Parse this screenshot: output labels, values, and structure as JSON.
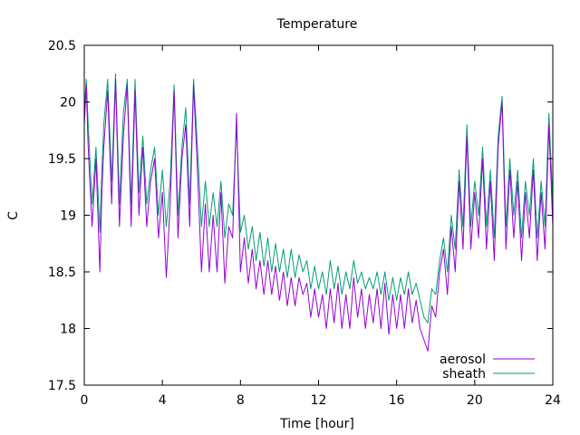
{
  "chart_data": {
    "type": "line",
    "title": "Temperature",
    "xlabel": "Time [hour]",
    "ylabel": "C",
    "xlim": [
      0,
      24
    ],
    "ylim": [
      17.5,
      20.5
    ],
    "x_ticks": [
      0,
      4,
      8,
      12,
      16,
      20,
      24
    ],
    "y_ticks": [
      17.5,
      18,
      18.5,
      19,
      19.5,
      20,
      20.5
    ],
    "x_tick_labels": [
      "0",
      "4",
      "8",
      "12",
      "16",
      "20",
      "24"
    ],
    "y_tick_labels": [
      "17.5",
      "18",
      "18.5",
      "19",
      "19.5",
      "20",
      "20.5"
    ],
    "grid": false,
    "legend_position": "bottom-right",
    "series": [
      {
        "name": "aerosol",
        "color": "#9400d3",
        "x": [
          0,
          0.1,
          0.2,
          0.4,
          0.6,
          0.8,
          0.9,
          1.0,
          1.2,
          1.4,
          1.6,
          1.8,
          2.0,
          2.2,
          2.4,
          2.6,
          2.8,
          3.0,
          3.2,
          3.4,
          3.6,
          3.8,
          4.0,
          4.2,
          4.4,
          4.6,
          4.8,
          5.0,
          5.2,
          5.4,
          5.6,
          5.8,
          6.0,
          6.2,
          6.4,
          6.6,
          6.8,
          7.0,
          7.2,
          7.4,
          7.6,
          7.8,
          8.0,
          8.2,
          8.4,
          8.6,
          8.8,
          9.0,
          9.2,
          9.4,
          9.6,
          9.8,
          10.0,
          10.2,
          10.4,
          10.6,
          10.8,
          11.0,
          11.2,
          11.4,
          11.6,
          11.8,
          12.0,
          12.2,
          12.4,
          12.6,
          12.8,
          13.0,
          13.2,
          13.4,
          13.6,
          13.8,
          14.0,
          14.2,
          14.4,
          14.6,
          14.8,
          15.0,
          15.2,
          15.4,
          15.6,
          15.8,
          16.0,
          16.2,
          16.4,
          16.6,
          16.8,
          17.0,
          17.2,
          17.4,
          17.6,
          17.8,
          18.0,
          18.2,
          18.4,
          18.6,
          18.8,
          19.0,
          19.2,
          19.4,
          19.6,
          19.8,
          20.0,
          20.2,
          20.4,
          20.6,
          20.8,
          21.0,
          21.2,
          21.4,
          21.6,
          21.8,
          22.0,
          22.2,
          22.4,
          22.6,
          22.8,
          23.0,
          23.2,
          23.4,
          23.6,
          23.8,
          24.0
        ],
        "y": [
          19.8,
          20.15,
          19.6,
          18.9,
          19.5,
          18.5,
          19.2,
          19.6,
          20.1,
          19.1,
          20.2,
          18.9,
          19.7,
          20.15,
          18.9,
          20.1,
          19.0,
          19.6,
          18.9,
          19.3,
          19.5,
          18.8,
          19.2,
          18.45,
          19.1,
          20.1,
          18.8,
          19.5,
          19.8,
          18.9,
          20.15,
          19.4,
          18.5,
          19.1,
          18.5,
          19.0,
          18.5,
          19.2,
          18.4,
          18.9,
          18.8,
          19.9,
          18.5,
          18.8,
          18.4,
          18.7,
          18.35,
          18.6,
          18.3,
          18.6,
          18.3,
          18.55,
          18.25,
          18.5,
          18.2,
          18.45,
          18.2,
          18.45,
          18.3,
          18.4,
          18.1,
          18.35,
          18.1,
          18.3,
          18.0,
          18.35,
          18.05,
          18.4,
          18.0,
          18.3,
          18.0,
          18.45,
          18.1,
          18.35,
          18.0,
          18.3,
          18.05,
          18.35,
          18.0,
          18.4,
          17.95,
          18.3,
          18.0,
          18.3,
          18.0,
          18.35,
          18.05,
          18.25,
          18.0,
          17.9,
          17.8,
          18.2,
          18.1,
          18.5,
          18.7,
          18.3,
          18.9,
          18.5,
          19.3,
          18.7,
          19.7,
          18.7,
          19.2,
          18.8,
          19.5,
          18.7,
          19.3,
          18.6,
          19.6,
          20.0,
          18.7,
          19.4,
          18.8,
          19.3,
          18.6,
          19.2,
          18.8,
          19.4,
          18.6,
          19.2,
          18.7,
          19.8,
          18.9
        ]
      },
      {
        "name": "sheath",
        "color": "#009e73",
        "x": [
          0,
          0.1,
          0.2,
          0.4,
          0.6,
          0.8,
          0.9,
          1.0,
          1.2,
          1.4,
          1.6,
          1.8,
          2.0,
          2.2,
          2.4,
          2.6,
          2.8,
          3.0,
          3.2,
          3.4,
          3.6,
          3.8,
          4.0,
          4.2,
          4.4,
          4.6,
          4.8,
          5.0,
          5.2,
          5.4,
          5.6,
          5.8,
          6.0,
          6.2,
          6.4,
          6.6,
          6.8,
          7.0,
          7.2,
          7.4,
          7.6,
          7.8,
          8.0,
          8.2,
          8.4,
          8.6,
          8.8,
          9.0,
          9.2,
          9.4,
          9.6,
          9.8,
          10.0,
          10.2,
          10.4,
          10.6,
          10.8,
          11.0,
          11.2,
          11.4,
          11.6,
          11.8,
          12.0,
          12.2,
          12.4,
          12.6,
          12.8,
          13.0,
          13.2,
          13.4,
          13.6,
          13.8,
          14.0,
          14.2,
          14.4,
          14.6,
          14.8,
          15.0,
          15.2,
          15.4,
          15.6,
          15.8,
          16.0,
          16.2,
          16.4,
          16.6,
          16.8,
          17.0,
          17.2,
          17.4,
          17.6,
          17.8,
          18.0,
          18.2,
          18.4,
          18.6,
          18.8,
          19.0,
          19.2,
          19.4,
          19.6,
          19.8,
          20.0,
          20.2,
          20.4,
          20.6,
          20.8,
          21.0,
          21.2,
          21.4,
          21.6,
          21.8,
          22.0,
          22.2,
          22.4,
          22.6,
          22.8,
          23.0,
          23.2,
          23.4,
          23.6,
          23.8,
          24.0
        ],
        "y": [
          19.9,
          20.2,
          19.8,
          19.1,
          19.6,
          18.85,
          19.4,
          19.8,
          20.2,
          19.3,
          20.25,
          19.1,
          19.9,
          20.2,
          19.1,
          20.2,
          19.2,
          19.7,
          19.1,
          19.4,
          19.6,
          19.0,
          19.4,
          18.9,
          19.3,
          20.15,
          19.0,
          19.6,
          19.95,
          19.1,
          20.2,
          19.6,
          18.9,
          19.3,
          18.9,
          19.2,
          18.9,
          19.3,
          18.8,
          19.1,
          19.0,
          19.8,
          18.85,
          19.0,
          18.7,
          18.9,
          18.6,
          18.85,
          18.55,
          18.8,
          18.5,
          18.75,
          18.5,
          18.7,
          18.45,
          18.7,
          18.45,
          18.65,
          18.5,
          18.6,
          18.35,
          18.55,
          18.35,
          18.5,
          18.3,
          18.6,
          18.35,
          18.55,
          18.3,
          18.5,
          18.35,
          18.6,
          18.4,
          18.5,
          18.35,
          18.45,
          18.35,
          18.5,
          18.3,
          18.5,
          18.25,
          18.45,
          18.25,
          18.45,
          18.3,
          18.5,
          18.3,
          18.4,
          18.25,
          18.1,
          18.05,
          18.35,
          18.3,
          18.6,
          18.8,
          18.5,
          19.0,
          18.7,
          19.4,
          18.9,
          19.8,
          18.9,
          19.3,
          19.0,
          19.6,
          18.9,
          19.4,
          18.8,
          19.7,
          20.05,
          18.9,
          19.5,
          19.0,
          19.4,
          18.8,
          19.3,
          19.0,
          19.5,
          18.8,
          19.3,
          18.9,
          19.9,
          19.1
        ]
      }
    ]
  }
}
